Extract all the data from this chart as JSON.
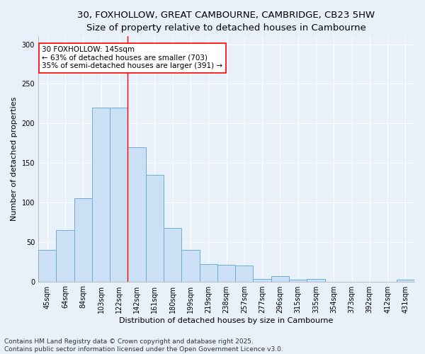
{
  "title_line1": "30, FOXHOLLOW, GREAT CAMBOURNE, CAMBRIDGE, CB23 5HW",
  "title_line2": "Size of property relative to detached houses in Cambourne",
  "xlabel": "Distribution of detached houses by size in Cambourne",
  "ylabel": "Number of detached properties",
  "categories": [
    "45sqm",
    "64sqm",
    "84sqm",
    "103sqm",
    "122sqm",
    "142sqm",
    "161sqm",
    "180sqm",
    "199sqm",
    "219sqm",
    "238sqm",
    "257sqm",
    "277sqm",
    "296sqm",
    "315sqm",
    "335sqm",
    "354sqm",
    "373sqm",
    "392sqm",
    "412sqm",
    "431sqm"
  ],
  "values": [
    40,
    65,
    105,
    220,
    220,
    170,
    135,
    68,
    40,
    22,
    21,
    20,
    3,
    7,
    2,
    3,
    0,
    0,
    0,
    0,
    2
  ],
  "bar_color": "#cce0f5",
  "bar_edge_color": "#6aaed6",
  "vline_position": 4.5,
  "annotation_text": "30 FOXHOLLOW: 145sqm\n← 63% of detached houses are smaller (703)\n35% of semi-detached houses are larger (391) →",
  "annotation_box_color": "white",
  "annotation_box_edge_color": "red",
  "vline_color": "red",
  "ylim": [
    0,
    310
  ],
  "yticks": [
    0,
    50,
    100,
    150,
    200,
    250,
    300
  ],
  "footer_line1": "Contains HM Land Registry data © Crown copyright and database right 2025.",
  "footer_line2": "Contains public sector information licensed under the Open Government Licence v3.0.",
  "bg_color": "#e8f0fa",
  "plot_bg_color": "#e8f0fa",
  "grid_color": "#ffffff",
  "title_fontsize": 9.5,
  "subtitle_fontsize": 8.5,
  "axis_label_fontsize": 8,
  "tick_fontsize": 7,
  "footer_fontsize": 6.5,
  "annotation_fontsize": 7.5
}
